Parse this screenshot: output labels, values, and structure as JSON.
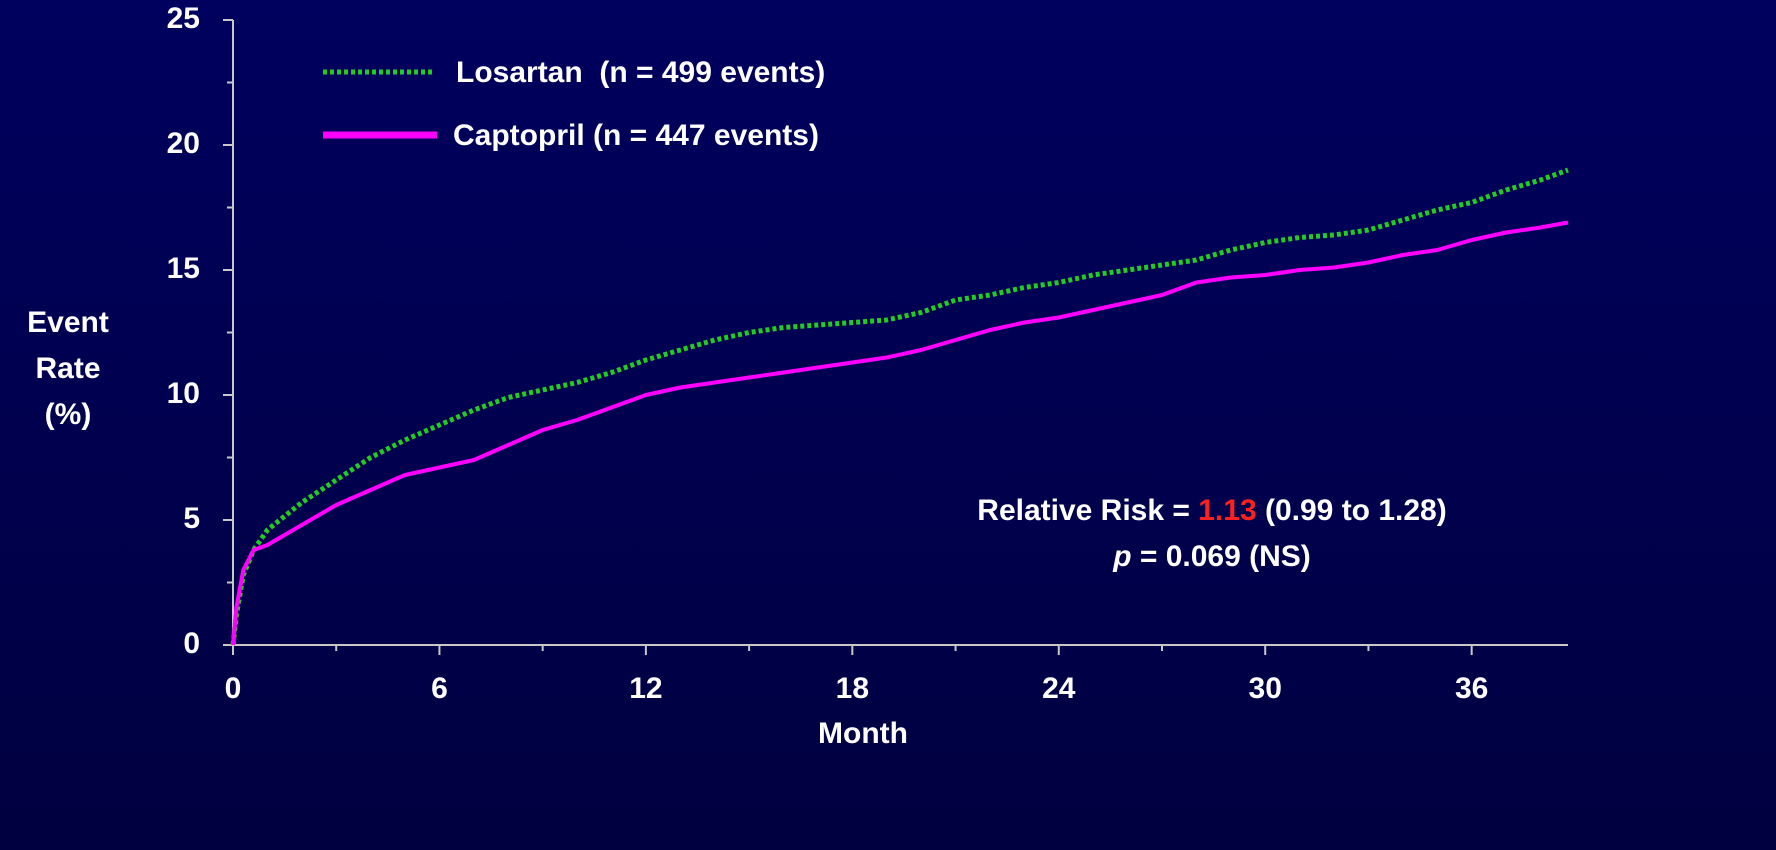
{
  "chart_data": {
    "type": "line",
    "y_label": [
      "Event",
      "Rate",
      "(%)"
    ],
    "x_label": "Month",
    "x": [
      0,
      0.1,
      0.3,
      0.6,
      1,
      2,
      3,
      4,
      5,
      6,
      7,
      8,
      9,
      10,
      11,
      12,
      13,
      14,
      15,
      16,
      17,
      18,
      19,
      20,
      21,
      22,
      23,
      24,
      25,
      26,
      27,
      28,
      29,
      30,
      31,
      32,
      33,
      34,
      35,
      36,
      37,
      38,
      38.8
    ],
    "series": [
      {
        "name": "Losartan  (n = 499 events)",
        "color": "#22cc22",
        "style": "dotted",
        "values": [
          0,
          1.2,
          2.8,
          3.8,
          4.6,
          5.7,
          6.6,
          7.5,
          8.2,
          8.8,
          9.4,
          9.9,
          10.2,
          10.5,
          10.9,
          11.4,
          11.8,
          12.2,
          12.5,
          12.7,
          12.8,
          12.9,
          13.0,
          13.3,
          13.8,
          14.0,
          14.3,
          14.5,
          14.8,
          15.0,
          15.2,
          15.4,
          15.8,
          16.1,
          16.3,
          16.4,
          16.6,
          17.0,
          17.4,
          17.7,
          18.2,
          18.6,
          19.0
        ]
      },
      {
        "name": "Captopril (n = 447 events)",
        "color": "#ff00ff",
        "style": "solid",
        "values": [
          0,
          1.5,
          3.0,
          3.8,
          4.0,
          4.8,
          5.6,
          6.2,
          6.8,
          7.1,
          7.4,
          8.0,
          8.6,
          9.0,
          9.5,
          10.0,
          10.3,
          10.5,
          10.7,
          10.9,
          11.1,
          11.3,
          11.5,
          11.8,
          12.2,
          12.6,
          12.9,
          13.1,
          13.4,
          13.7,
          14.0,
          14.5,
          14.7,
          14.8,
          15.0,
          15.1,
          15.3,
          15.6,
          15.8,
          16.2,
          16.5,
          16.7,
          16.9
        ]
      }
    ],
    "xlim": [
      0,
      38.8
    ],
    "ylim": [
      0,
      25
    ],
    "xticks": [
      0,
      6,
      12,
      18,
      24,
      30,
      36
    ],
    "xminor_ticks": [
      3,
      9,
      15,
      21,
      27,
      33
    ],
    "yticks": [
      0,
      5,
      10,
      15,
      20,
      25
    ],
    "yminor_ticks": [
      2.5,
      7.5,
      12.5,
      17.5,
      22.5
    ],
    "annotation": {
      "line1": [
        "Relative Risk = ",
        "1.13",
        " (0.99 to 1.28)"
      ],
      "line2": [
        "p",
        " = 0.069 (NS)"
      ]
    }
  }
}
